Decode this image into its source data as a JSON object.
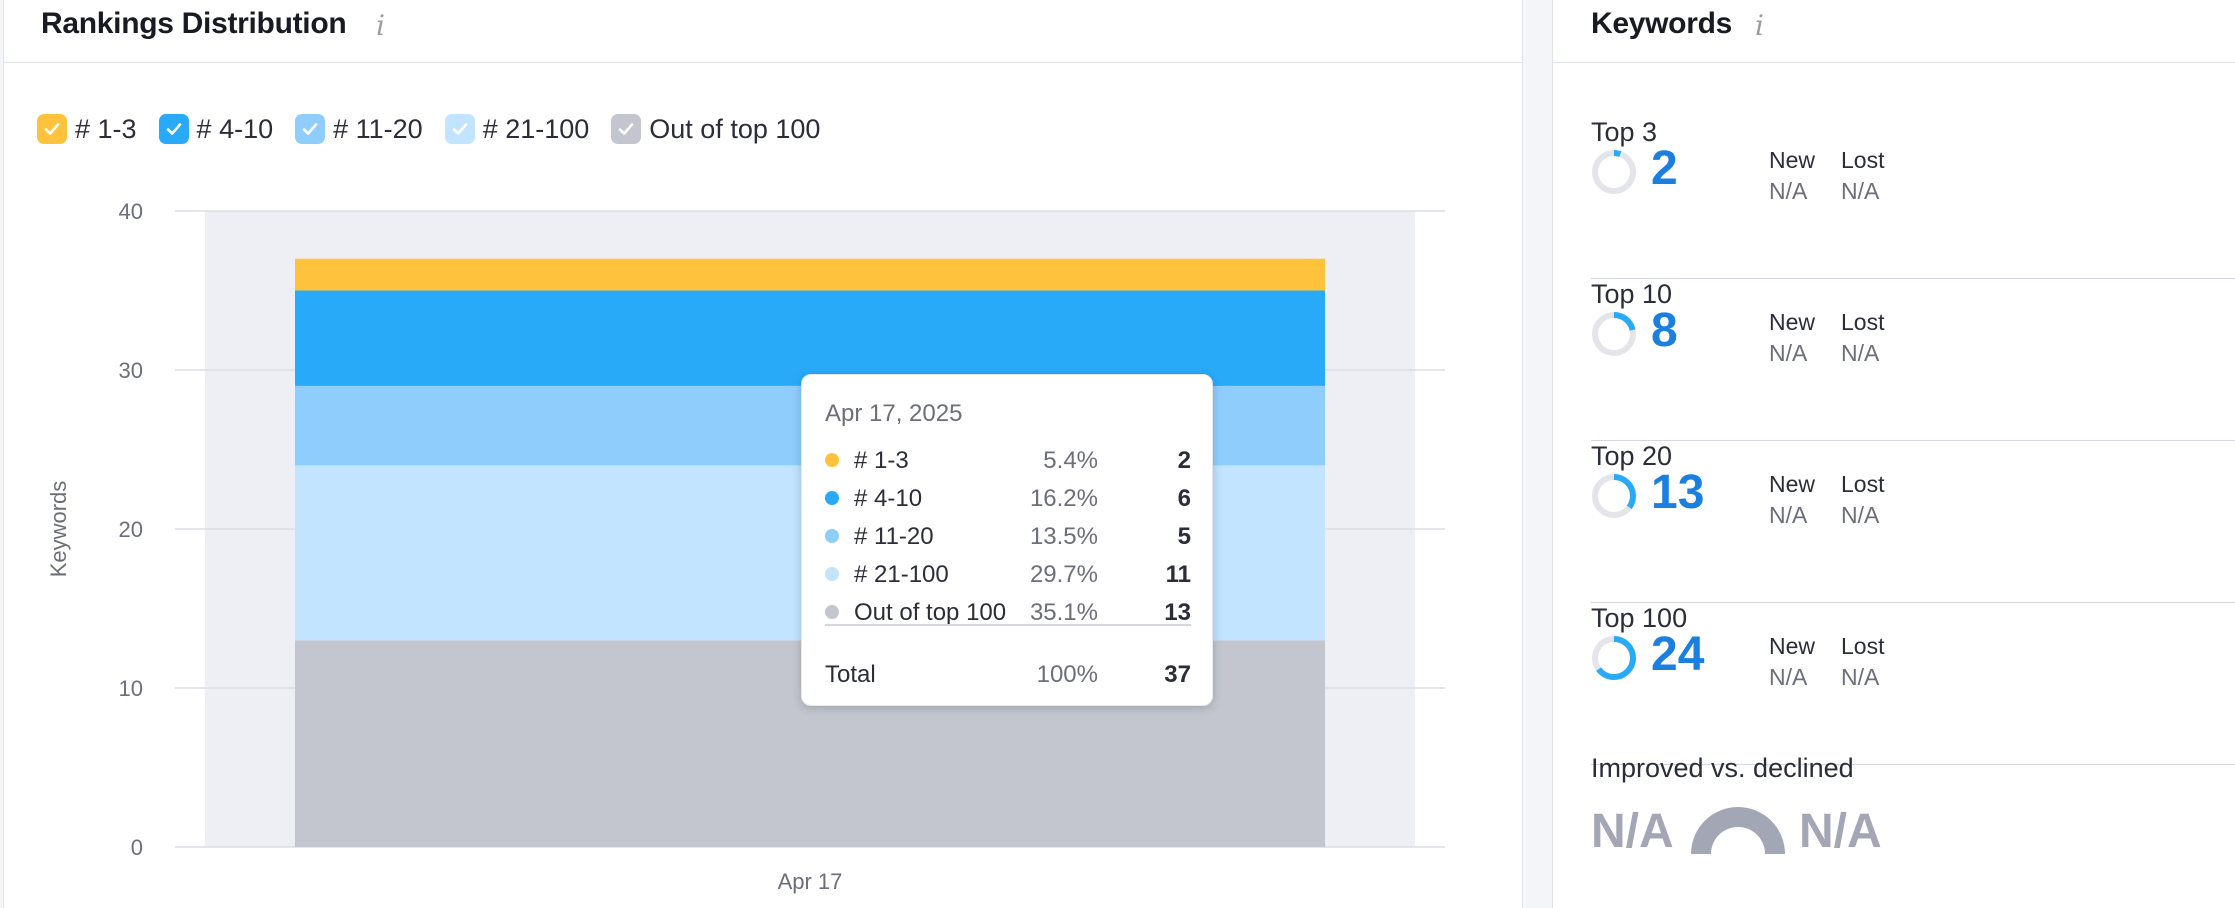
{
  "rankings": {
    "title": "Rankings Distribution",
    "info_icon": "i",
    "legend": [
      {
        "label": "# 1-3",
        "color": "#ffc23c"
      },
      {
        "label": "# 4-10",
        "color": "#29aaf9"
      },
      {
        "label": "# 11-20",
        "color": "#8fcdfd"
      },
      {
        "label": "# 21-100",
        "color": "#c2e4fe"
      },
      {
        "label": "Out of top 100",
        "color": "#c3c6cf"
      }
    ]
  },
  "chart_data": {
    "type": "bar",
    "stacked": true,
    "categories": [
      "Apr 17"
    ],
    "series": [
      {
        "name": "Out of top 100",
        "values": [
          13
        ],
        "color": "#c3c6cf"
      },
      {
        "name": "# 21-100",
        "values": [
          11
        ],
        "color": "#c2e4fe"
      },
      {
        "name": "# 11-20",
        "values": [
          5
        ],
        "color": "#8fcdfd"
      },
      {
        "name": "# 4-10",
        "values": [
          6
        ],
        "color": "#29aaf9"
      },
      {
        "name": "# 1-3",
        "values": [
          2
        ],
        "color": "#ffc23c"
      }
    ],
    "ylabel": "Keywords",
    "ylim": [
      0,
      40
    ],
    "yticks": [
      "0",
      "10",
      "20",
      "30",
      "40"
    ],
    "grid": true
  },
  "tooltip": {
    "date": "Apr 17, 2025",
    "rows": [
      {
        "name": "# 1-3",
        "pct": "5.4%",
        "value": "2",
        "color": "#ffc23c"
      },
      {
        "name": "# 4-10",
        "pct": "16.2%",
        "value": "6",
        "color": "#29aaf9"
      },
      {
        "name": "# 11-20",
        "pct": "13.5%",
        "value": "5",
        "color": "#8fcdfd"
      },
      {
        "name": "# 21-100",
        "pct": "29.7%",
        "value": "11",
        "color": "#c2e4fe"
      },
      {
        "name": "Out of top 100",
        "pct": "35.1%",
        "value": "13",
        "color": "#c3c6cf"
      }
    ],
    "total": {
      "name": "Total",
      "pct": "100%",
      "value": "37"
    }
  },
  "keywords": {
    "title": "Keywords",
    "info_icon": "i",
    "new_label": "New",
    "lost_label": "Lost",
    "blocks": [
      {
        "label": "Top 3",
        "value": "2",
        "new": "N/A",
        "lost": "N/A",
        "share": 0.054
      },
      {
        "label": "Top 10",
        "value": "8",
        "new": "N/A",
        "lost": "N/A",
        "share": 0.216
      },
      {
        "label": "Top 20",
        "value": "13",
        "new": "N/A",
        "lost": "N/A",
        "share": 0.351
      },
      {
        "label": "Top 100",
        "value": "24",
        "new": "N/A",
        "lost": "N/A",
        "share": 0.649
      }
    ],
    "improved": {
      "label": "Improved vs. declined",
      "improved": "N/A",
      "declined": "N/A"
    }
  },
  "colors": {
    "accent": "#1b7fe0",
    "donut_track": "#e4e5ea",
    "donut_fill": "#29aaf9"
  }
}
